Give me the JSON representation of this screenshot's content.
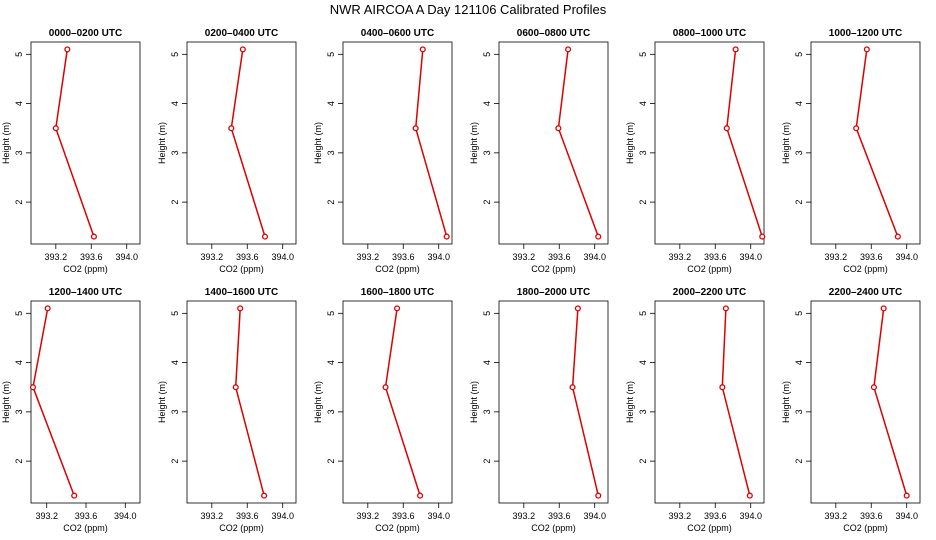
{
  "title": "NWR AIRCOA A  Day 121106  Calibrated Profiles",
  "colors": {
    "line": "#dd0000",
    "axis": "#000000"
  },
  "chart_data": [
    {
      "type": "line",
      "title": "0000–0200 UTC",
      "xlabel": "CO2 (ppm)",
      "ylabel": "Height (m)",
      "x": [
        393.33,
        393.2,
        393.63
      ],
      "y": [
        5.1,
        3.5,
        1.3
      ],
      "xlim": [
        392.92,
        394.15
      ],
      "ylim": [
        1.15,
        5.25
      ],
      "xticks": [
        "393.2",
        "393.6",
        "394.0"
      ],
      "yticks": [
        "2",
        "3",
        "4",
        "5"
      ],
      "grid": false
    },
    {
      "type": "line",
      "title": "0200–0400 UTC",
      "xlabel": "CO2 (ppm)",
      "ylabel": "Height (m)",
      "x": [
        393.55,
        393.42,
        393.8
      ],
      "y": [
        5.1,
        3.5,
        1.3
      ],
      "xlim": [
        392.92,
        394.15
      ],
      "ylim": [
        1.15,
        5.25
      ],
      "xticks": [
        "393.2",
        "393.6",
        "394.0"
      ],
      "yticks": [
        "2",
        "3",
        "4",
        "5"
      ],
      "grid": false
    },
    {
      "type": "line",
      "title": "0400–0600 UTC",
      "xlabel": "CO2 (ppm)",
      "ylabel": "Height (m)",
      "x": [
        393.82,
        393.74,
        394.09
      ],
      "y": [
        5.1,
        3.5,
        1.3
      ],
      "xlim": [
        392.92,
        394.15
      ],
      "ylim": [
        1.15,
        5.25
      ],
      "xticks": [
        "393.2",
        "393.6",
        "394.0"
      ],
      "yticks": [
        "2",
        "3",
        "4",
        "5"
      ],
      "grid": false
    },
    {
      "type": "line",
      "title": "0600–0800 UTC",
      "xlabel": "CO2 (ppm)",
      "ylabel": "Height (m)",
      "x": [
        393.7,
        393.59,
        394.04
      ],
      "y": [
        5.1,
        3.5,
        1.3
      ],
      "xlim": [
        392.92,
        394.15
      ],
      "ylim": [
        1.15,
        5.25
      ],
      "xticks": [
        "393.2",
        "393.6",
        "394.0"
      ],
      "yticks": [
        "2",
        "3",
        "4",
        "5"
      ],
      "grid": false
    },
    {
      "type": "line",
      "title": "0800–1000 UTC",
      "xlabel": "CO2 (ppm)",
      "ylabel": "Height (m)",
      "x": [
        393.83,
        393.73,
        394.13
      ],
      "y": [
        5.1,
        3.5,
        1.3
      ],
      "xlim": [
        392.92,
        394.15
      ],
      "ylim": [
        1.15,
        5.25
      ],
      "xticks": [
        "393.2",
        "393.6",
        "394.0"
      ],
      "yticks": [
        "2",
        "3",
        "4",
        "5"
      ],
      "grid": false
    },
    {
      "type": "line",
      "title": "1000–1200 UTC",
      "xlabel": "CO2 (ppm)",
      "ylabel": "Height (m)",
      "x": [
        393.55,
        393.43,
        393.9
      ],
      "y": [
        5.1,
        3.5,
        1.3
      ],
      "xlim": [
        392.92,
        394.15
      ],
      "ylim": [
        1.15,
        5.25
      ],
      "xticks": [
        "393.2",
        "393.6",
        "394.0"
      ],
      "yticks": [
        "2",
        "3",
        "4",
        "5"
      ],
      "grid": false
    },
    {
      "type": "line",
      "title": "1200–1400 UTC",
      "xlabel": "CO2 (ppm)",
      "ylabel": "Height (m)",
      "x": [
        393.21,
        393.06,
        393.48
      ],
      "y": [
        5.1,
        3.5,
        1.3
      ],
      "xlim": [
        393.04,
        394.15
      ],
      "ylim": [
        1.15,
        5.25
      ],
      "xticks": [
        "393.2",
        "393.6",
        "394.0"
      ],
      "yticks": [
        "2",
        "3",
        "4",
        "5"
      ],
      "grid": false
    },
    {
      "type": "line",
      "title": "1400–1600 UTC",
      "xlabel": "CO2 (ppm)",
      "ylabel": "Height (m)",
      "x": [
        393.52,
        393.47,
        393.79
      ],
      "y": [
        5.1,
        3.5,
        1.3
      ],
      "xlim": [
        392.92,
        394.15
      ],
      "ylim": [
        1.15,
        5.25
      ],
      "xticks": [
        "393.2",
        "393.6",
        "394.0"
      ],
      "yticks": [
        "2",
        "3",
        "4",
        "5"
      ],
      "grid": false
    },
    {
      "type": "line",
      "title": "1600–1800 UTC",
      "xlabel": "CO2 (ppm)",
      "ylabel": "Height (m)",
      "x": [
        393.53,
        393.4,
        393.79
      ],
      "y": [
        5.1,
        3.5,
        1.3
      ],
      "xlim": [
        392.92,
        394.15
      ],
      "ylim": [
        1.15,
        5.25
      ],
      "xticks": [
        "393.2",
        "393.6",
        "394.0"
      ],
      "yticks": [
        "2",
        "3",
        "4",
        "5"
      ],
      "grid": false
    },
    {
      "type": "line",
      "title": "1800–2000 UTC",
      "xlabel": "CO2 (ppm)",
      "ylabel": "Height (m)",
      "x": [
        393.81,
        393.75,
        394.04
      ],
      "y": [
        5.1,
        3.5,
        1.3
      ],
      "xlim": [
        392.92,
        394.15
      ],
      "ylim": [
        1.15,
        5.25
      ],
      "xticks": [
        "393.2",
        "393.6",
        "394.0"
      ],
      "yticks": [
        "2",
        "3",
        "4",
        "5"
      ],
      "grid": false
    },
    {
      "type": "line",
      "title": "2000–2200 UTC",
      "xlabel": "CO2 (ppm)",
      "ylabel": "Height (m)",
      "x": [
        393.72,
        393.68,
        393.99
      ],
      "y": [
        5.1,
        3.5,
        1.3
      ],
      "xlim": [
        392.92,
        394.15
      ],
      "ylim": [
        1.15,
        5.25
      ],
      "xticks": [
        "393.2",
        "393.6",
        "394.0"
      ],
      "yticks": [
        "2",
        "3",
        "4",
        "5"
      ],
      "grid": false
    },
    {
      "type": "line",
      "title": "2200–2400 UTC",
      "xlabel": "CO2 (ppm)",
      "ylabel": "Height (m)",
      "x": [
        393.74,
        393.63,
        394.0
      ],
      "y": [
        5.1,
        3.5,
        1.3
      ],
      "xlim": [
        392.92,
        394.15
      ],
      "ylim": [
        1.15,
        5.25
      ],
      "xticks": [
        "393.2",
        "393.6",
        "394.0"
      ],
      "yticks": [
        "2",
        "3",
        "4",
        "5"
      ],
      "grid": false
    }
  ]
}
